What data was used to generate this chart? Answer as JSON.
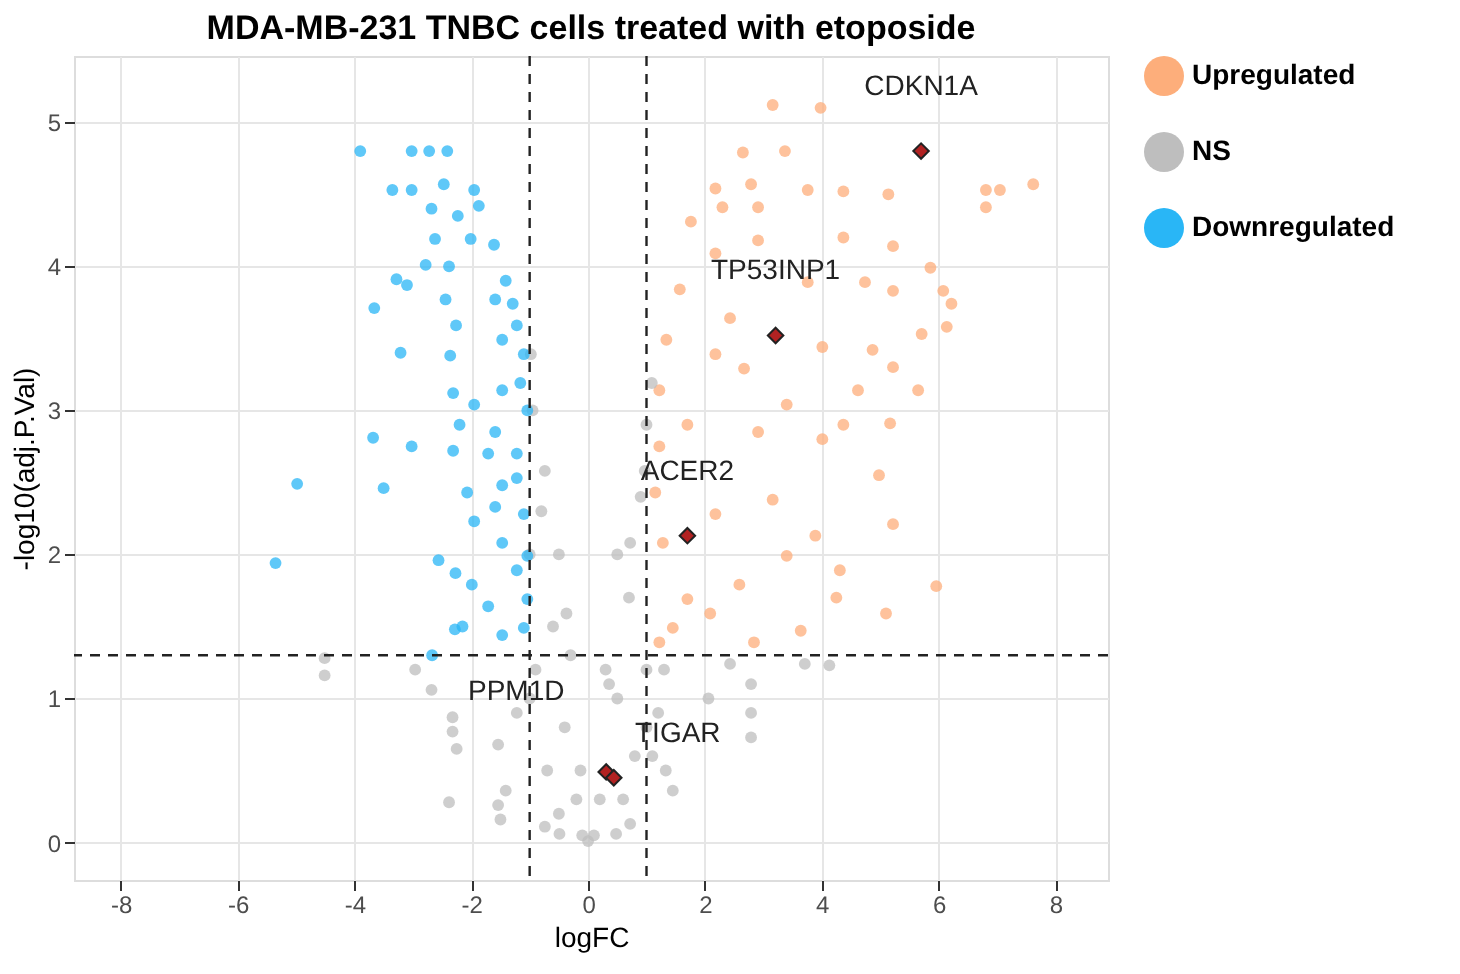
{
  "chart_data": {
    "type": "scatter",
    "title": "MDA-MB-231 TNBC cells  treated with etoposide",
    "xlabel": "logFC",
    "ylabel": "-log10(adj.P.Val)",
    "xlim": [
      -8.8,
      8.9
    ],
    "xticks": [
      -8,
      -6,
      -4,
      -2,
      0,
      2,
      4,
      6,
      8
    ],
    "ylim": [
      -0.26,
      5.46
    ],
    "yticks": [
      0,
      1,
      2,
      3,
      4,
      5
    ],
    "grid": true,
    "legend": "right",
    "marker": "circle",
    "ref_lines": [
      {
        "axis": "x",
        "value": -1,
        "line_style": "dashed"
      },
      {
        "axis": "x",
        "value": 1,
        "line_style": "dashed"
      },
      {
        "axis": "y",
        "value": 1.3,
        "line_style": "dashed"
      }
    ],
    "series": [
      {
        "name": "Upregulated",
        "color": "#fdae7b",
        "x": [
          3.16,
          3.98,
          2.65,
          3.37,
          6.81,
          7.62,
          7.05,
          6.81,
          5.14,
          4.37,
          3.76,
          2.79,
          2.18,
          1.76,
          2.3,
          2.91,
          4.37,
          5.22,
          5.86,
          6.08,
          6.22,
          6.14,
          5.71,
          5.22,
          4.74,
          3.76,
          2.18,
          1.57,
          2.91,
          2.43,
          1.34,
          1.22,
          2.18,
          4.01,
          4.87,
          5.22,
          5.65,
          5.17,
          4.62,
          3.4,
          4.01,
          2.91,
          1.7,
          1.22,
          2.67,
          4.37,
          5.96,
          5.1,
          5.22,
          4.98,
          4.31,
          4.25,
          3.89,
          3.64,
          2.84,
          2.59,
          2.09,
          1.7,
          1.22,
          1.28,
          2.18,
          3.16,
          3.4,
          1.15,
          1.45
        ],
        "values": [
          5.12,
          5.1,
          4.79,
          4.8,
          4.53,
          4.57,
          4.53,
          4.41,
          4.5,
          4.52,
          4.53,
          4.57,
          4.54,
          4.31,
          4.41,
          4.41,
          4.2,
          4.14,
          3.99,
          3.83,
          3.74,
          3.58,
          3.53,
          3.83,
          3.89,
          3.89,
          4.09,
          3.84,
          4.18,
          3.64,
          3.49,
          3.14,
          3.39,
          3.44,
          3.42,
          3.3,
          3.14,
          2.91,
          3.14,
          3.04,
          2.8,
          2.85,
          2.9,
          2.75,
          3.29,
          2.9,
          1.78,
          1.59,
          2.21,
          2.55,
          1.89,
          1.7,
          2.13,
          1.47,
          1.39,
          1.79,
          1.59,
          1.69,
          1.39,
          2.08,
          2.28,
          2.38,
          1.99,
          2.43,
          1.49
        ]
      },
      {
        "name": "NS",
        "color": "#bebebe",
        "x": [
          0.0,
          -0.98,
          1.09,
          -0.74,
          -0.37,
          -0.13,
          0.36,
          0.72,
          0.97,
          -4.51,
          -4.51,
          -2.96,
          -2.68,
          -2.32,
          -2.32,
          -2.25,
          -2.38,
          -1.54,
          -1.5,
          -1.54,
          -1.41,
          -1.22,
          2.43,
          2.79,
          2.79,
          2.79,
          3.71,
          4.13,
          2.06,
          1.45,
          1.33,
          0.72,
          -0.74,
          -0.49,
          0.48,
          -0.2,
          -0.4,
          -0.6,
          -0.8,
          -0.95,
          -0.9,
          -0.7,
          -0.5,
          -1.0,
          -1.0,
          -0.3,
          -0.5,
          0.2,
          0.5,
          0.7,
          0.9,
          1.0,
          1.0,
          0.8,
          0.6,
          1.0,
          1.2,
          1.3,
          1.1,
          0.3,
          0.5,
          0.1,
          -0.1
        ],
        "values": [
          0.01,
          3.39,
          3.19,
          2.58,
          1.59,
          0.5,
          1.1,
          2.08,
          2.58,
          1.28,
          1.16,
          1.2,
          1.06,
          0.87,
          0.77,
          0.65,
          0.28,
          0.26,
          0.16,
          0.68,
          0.36,
          0.9,
          1.24,
          1.1,
          0.9,
          0.73,
          1.24,
          1.23,
          1.0,
          0.36,
          0.5,
          0.13,
          0.11,
          0.06,
          0.06,
          0.3,
          0.8,
          1.5,
          2.3,
          3.0,
          1.2,
          0.5,
          0.2,
          2.0,
          1.0,
          1.3,
          2.0,
          0.3,
          1.0,
          1.7,
          2.4,
          2.9,
          1.2,
          0.6,
          0.3,
          0.8,
          0.9,
          1.2,
          0.6,
          1.2,
          2.0,
          0.05,
          0.05
        ]
      },
      {
        "name": "Downregulated",
        "color": "#29b6f6",
        "x": [
          -3.9,
          -3.02,
          -2.72,
          -2.41,
          -3.35,
          -3.02,
          -2.47,
          -1.95,
          -1.87,
          -2.68,
          -2.23,
          -2.62,
          -2.01,
          -1.61,
          -2.78,
          -2.38,
          -3.28,
          -3.1,
          -3.66,
          -1.41,
          -1.59,
          -1.29,
          -2.44,
          -2.26,
          -3.21,
          -2.36,
          -1.47,
          -1.22,
          -1.1,
          -2.31,
          -1.95,
          -1.47,
          -1.16,
          -3.68,
          -3.02,
          -2.31,
          -1.71,
          -1.22,
          -1.04,
          -2.2,
          -1.59,
          -4.98,
          -3.5,
          -5.35,
          -2.56,
          -2.27,
          -2.28,
          -2.15,
          -2.67,
          -1.99,
          -1.71,
          -1.47,
          -1.1,
          -1.47,
          -1.22,
          -1.95,
          -1.59,
          -1.1,
          -1.04,
          -2.07,
          -1.47,
          -1.04,
          -1.22
        ],
        "values": [
          4.8,
          4.8,
          4.8,
          4.8,
          4.53,
          4.53,
          4.57,
          4.53,
          4.42,
          4.4,
          4.35,
          4.19,
          4.19,
          4.15,
          4.01,
          4.0,
          3.91,
          3.87,
          3.71,
          3.9,
          3.77,
          3.74,
          3.77,
          3.59,
          3.4,
          3.38,
          3.49,
          3.59,
          3.39,
          3.12,
          3.04,
          3.14,
          3.19,
          2.81,
          2.75,
          2.72,
          2.7,
          2.7,
          3.0,
          2.9,
          2.85,
          2.49,
          2.46,
          1.94,
          1.96,
          1.87,
          1.48,
          1.5,
          1.3,
          1.79,
          1.64,
          1.44,
          1.49,
          2.08,
          1.89,
          2.23,
          2.33,
          2.28,
          1.99,
          2.43,
          2.48,
          1.69,
          2.53
        ]
      },
      {
        "color": "#b22222",
        "marker": "diamond",
        "x": [
          5.7,
          3.21,
          1.7,
          0.31,
          0.44
        ],
        "values": [
          4.8,
          3.52,
          2.13,
          0.49,
          0.45
        ]
      }
    ],
    "annotations": [
      {
        "text": "CDKN1A",
        "x": 5.7,
        "y": 4.8
      },
      {
        "text": "TP53INP1",
        "x": 3.21,
        "y": 3.52
      },
      {
        "text": "ACER2",
        "x": 1.7,
        "y": 2.13
      },
      {
        "text": "PPM1D",
        "x": 0.31,
        "y": 0.49
      },
      {
        "text": "TIGAR",
        "x": 0.44,
        "y": 0.45
      }
    ]
  }
}
